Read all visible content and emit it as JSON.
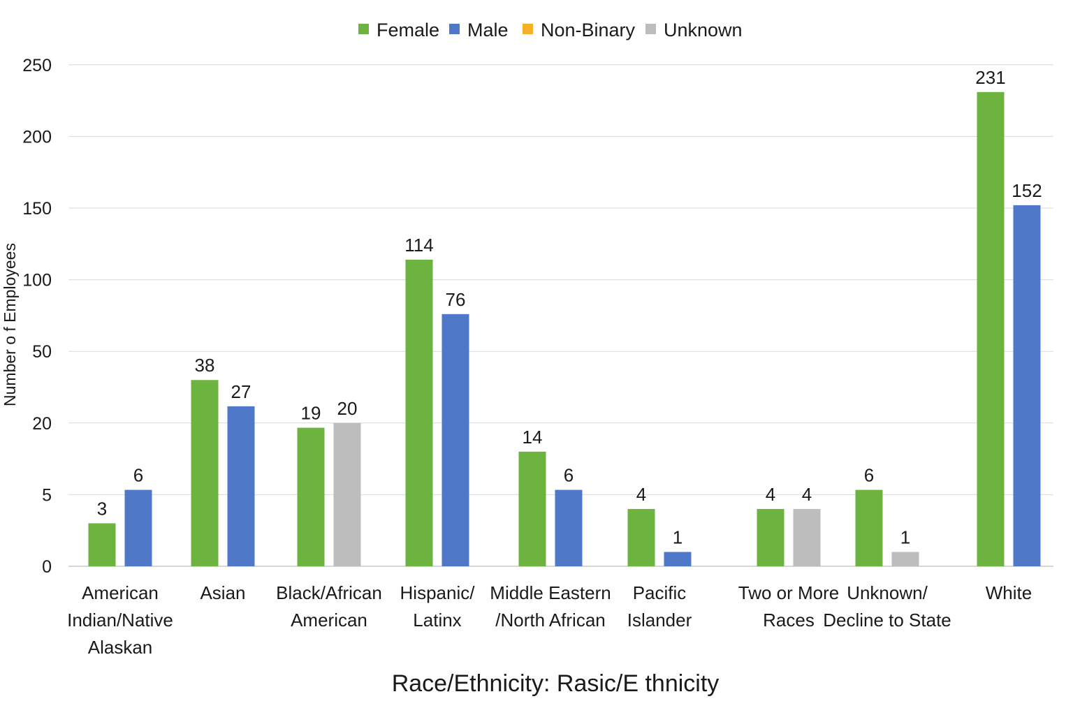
{
  "chart_data": {
    "type": "bar",
    "xlabel": "Race/Ethnicity: Rasic/E thnicity",
    "ylabel": "Number o f Employees",
    "legend_position": "top",
    "grid": true,
    "y_ticks": [
      "0",
      "5",
      "20",
      "50",
      "100",
      "150",
      "200",
      "250"
    ],
    "categories": [
      [
        "American",
        "Indian/Native",
        "Alaskan"
      ],
      [
        "Asian"
      ],
      [
        "Black/African",
        "American"
      ],
      [
        "Hispanic/",
        "Latinx"
      ],
      [
        "Middle Eastern",
        "/North African"
      ],
      [
        "Pacific",
        "Islander"
      ],
      [
        "Two or More",
        "Races"
      ],
      [
        "Unknown/",
        "Decline to State"
      ],
      [
        "White"
      ]
    ],
    "series": [
      {
        "name": "Female",
        "color": "#6db33f"
      },
      {
        "name": "Male",
        "color": "#4f78c9"
      },
      {
        "name": "Non-Binary",
        "color": "#f5b025"
      },
      {
        "name": "Unknown",
        "color": "#bdbdbd"
      }
    ],
    "groups": [
      {
        "bars": [
          {
            "series": 0,
            "value": 3,
            "label": "3"
          },
          {
            "series": 1,
            "value": 6,
            "label": "6"
          }
        ]
      },
      {
        "bars": [
          {
            "series": 0,
            "value": 38,
            "label": "38"
          },
          {
            "series": 1,
            "value": 27,
            "label": "27"
          }
        ]
      },
      {
        "bars": [
          {
            "series": 0,
            "value": 19,
            "label": "19"
          },
          {
            "series": 3,
            "value": 20,
            "label": "20"
          }
        ]
      },
      {
        "bars": [
          {
            "series": 0,
            "value": 114,
            "label": "114"
          },
          {
            "series": 1,
            "value": 76,
            "label": "76"
          }
        ]
      },
      {
        "bars": [
          {
            "series": 0,
            "value": 14,
            "label": "14"
          },
          {
            "series": 1,
            "value": 6,
            "label": "6"
          }
        ]
      },
      {
        "bars": [
          {
            "series": 0,
            "value": 4,
            "label": "4"
          },
          {
            "series": 1,
            "value": 1,
            "label": "1"
          }
        ]
      },
      {
        "bars": [
          {
            "series": 0,
            "value": 4,
            "label": "4"
          },
          {
            "series": 3,
            "value": 4,
            "label": "4"
          }
        ]
      },
      {
        "bars": [
          {
            "series": 0,
            "value": 6,
            "label": "6"
          },
          {
            "series": 3,
            "value": 1,
            "label": "1"
          }
        ]
      },
      {
        "bars": [
          {
            "series": 0,
            "value": 231,
            "label": "231"
          },
          {
            "series": 1,
            "value": 152,
            "label": "152"
          }
        ]
      }
    ]
  }
}
